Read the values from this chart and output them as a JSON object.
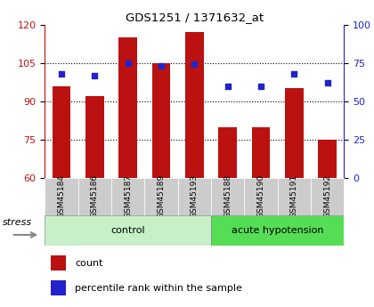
{
  "title": "GDS1251 / 1371632_at",
  "samples": [
    "GSM45184",
    "GSM45186",
    "GSM45187",
    "GSM45189",
    "GSM45193",
    "GSM45188",
    "GSM45190",
    "GSM45191",
    "GSM45192"
  ],
  "counts": [
    96,
    92,
    115,
    105,
    117,
    80,
    80,
    95,
    75
  ],
  "percentiles": [
    68,
    67,
    75,
    73,
    74,
    60,
    60,
    68,
    62
  ],
  "ylim_left": [
    60,
    120
  ],
  "ylim_right": [
    0,
    100
  ],
  "yticks_left": [
    60,
    75,
    90,
    105,
    120
  ],
  "yticks_right": [
    0,
    25,
    50,
    75,
    100
  ],
  "bar_color": "#bb1111",
  "dot_color": "#2222cc",
  "bar_bottom": 60,
  "bg_color": "#cccccc",
  "control_color": "#c8f0c8",
  "acute_color": "#55dd55",
  "legend_count_label": "count",
  "legend_pct_label": "percentile rank within the sample",
  "stress_label": "stress",
  "control_label": "control",
  "acute_label": "acute hypotension",
  "n_control": 5,
  "n_acute": 4
}
